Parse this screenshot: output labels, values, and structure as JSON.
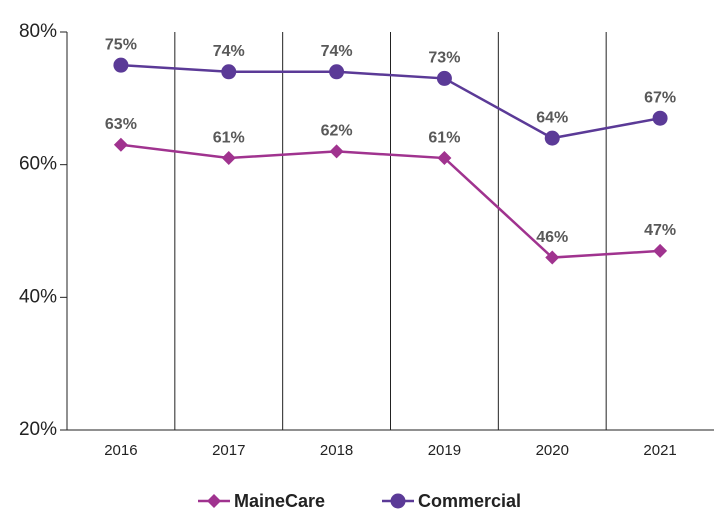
{
  "chart_data": {
    "type": "line",
    "categories": [
      "2016",
      "2017",
      "2018",
      "2019",
      "2020",
      "2021"
    ],
    "series": [
      {
        "name": "MaineCare",
        "color": "#a0338f",
        "marker": "diamond",
        "values": [
          63,
          61,
          62,
          61,
          46,
          47
        ],
        "value_labels": [
          "63%",
          "61%",
          "62%",
          "61%",
          "46%",
          "47%"
        ]
      },
      {
        "name": "Commercial",
        "color": "#5b3a97",
        "marker": "circle",
        "values": [
          75,
          74,
          74,
          73,
          64,
          67
        ],
        "value_labels": [
          "75%",
          "74%",
          "74%",
          "73%",
          "64%",
          "67%"
        ]
      }
    ],
    "ylim": [
      20,
      80
    ],
    "yticks": [
      {
        "value": 20,
        "label": "20%"
      },
      {
        "value": 40,
        "label": "40%"
      },
      {
        "value": 60,
        "label": "60%"
      },
      {
        "value": 80,
        "label": "80%"
      }
    ],
    "legend": "bottom"
  }
}
